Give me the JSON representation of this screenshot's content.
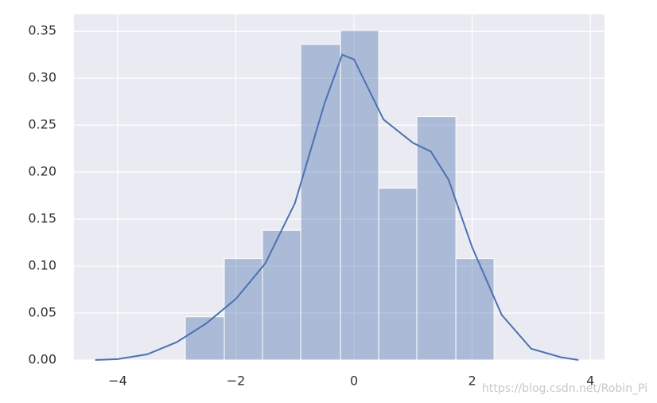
{
  "chart_data": {
    "type": "histogram",
    "bins": [
      -2.855,
      -2.195,
      -1.549,
      -0.902,
      -0.229,
      0.418,
      1.064,
      1.724,
      2.37
    ],
    "values": [
      0.046,
      0.108,
      0.138,
      0.336,
      0.351,
      0.183,
      0.259,
      0.108
    ],
    "color": "#4c72b0",
    "kde": {
      "x": [
        -4.38,
        -4,
        -3.5,
        -3,
        -2.5,
        -2,
        -1.5,
        -1,
        -0.5,
        -0.2,
        0,
        0.5,
        1,
        1.3,
        1.6,
        2,
        2.5,
        3,
        3.5,
        3.8
      ],
      "values": [
        0,
        0.001,
        0.006,
        0.019,
        0.039,
        0.065,
        0.103,
        0.167,
        0.273,
        0.325,
        0.32,
        0.256,
        0.231,
        0.222,
        0.192,
        0.12,
        0.048,
        0.012,
        0.003,
        0
      ],
      "color": "#4c72b0"
    },
    "xlim": [
      -4.74,
      4.24
    ],
    "ylim": [
      0,
      0.368
    ],
    "xticks": [
      {
        "value": -4,
        "label": "−4"
      },
      {
        "value": -2,
        "label": "−2"
      },
      0,
      2,
      4
    ],
    "yticks": [
      {
        "value": 0,
        "label": "0.00"
      },
      0.05,
      {
        "value": 0.1,
        "label": "0.10"
      },
      0.15,
      {
        "value": 0.2,
        "label": "0.20"
      },
      0.25,
      {
        "value": 0.3,
        "label": "0.30"
      },
      0.35
    ],
    "grid": true,
    "watermark": "https://blog.csdn.net/Robin_Pi"
  }
}
